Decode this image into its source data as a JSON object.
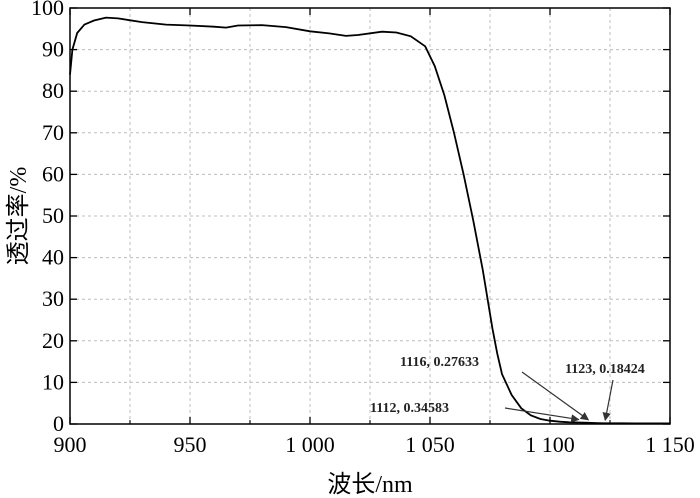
{
  "chart_data": {
    "type": "line",
    "xlabel": "波长/nm",
    "ylabel": "透过率/%",
    "xlim": [
      900,
      1150
    ],
    "ylim": [
      0,
      100
    ],
    "grid": true,
    "x_ticks": [
      900,
      950,
      1000,
      1050,
      1100,
      1150
    ],
    "x_tick_labels": [
      "900",
      "950",
      "1 000",
      "1 050",
      "1 100",
      "1 150"
    ],
    "y_ticks": [
      0,
      10,
      20,
      30,
      40,
      50,
      60,
      70,
      80,
      90,
      100
    ],
    "y_tick_labels": [
      "0",
      "10",
      "20",
      "30",
      "40",
      "50",
      "60",
      "70",
      "80",
      "90",
      "100"
    ],
    "series": [
      {
        "x": [
          900,
          901,
          903,
          906,
          910,
          915,
          920,
          930,
          940,
          950,
          960,
          965,
          970,
          980,
          990,
          1000,
          1008,
          1015,
          1020,
          1030,
          1036,
          1042,
          1048,
          1052,
          1056,
          1060,
          1064,
          1068,
          1072,
          1074,
          1076,
          1078,
          1080,
          1084,
          1088,
          1092,
          1096,
          1100,
          1104,
          1108,
          1112,
          1116,
          1120,
          1123,
          1130,
          1140,
          1150
        ],
        "y": [
          84,
          90,
          94,
          96,
          97,
          97.7,
          97.5,
          96.6,
          96.0,
          95.8,
          95.5,
          95.3,
          95.8,
          95.9,
          95.4,
          94.4,
          93.9,
          93.3,
          93.5,
          94.3,
          94.1,
          93.2,
          90.8,
          86,
          79,
          70,
          60,
          49,
          37,
          30,
          23,
          17,
          12,
          7,
          3.8,
          2.1,
          1.2,
          0.8,
          0.55,
          0.42,
          0.35,
          0.28,
          0.22,
          0.18,
          0.16,
          0.14,
          0.14
        ],
        "color": "#000000"
      }
    ],
    "annotations": [
      {
        "text": "1116, 0.27633",
        "x": 1116,
        "y": 0.27633
      },
      {
        "text": "1112, 0.34583",
        "x": 1112,
        "y": 0.34583
      },
      {
        "text": "1123, 0.18424",
        "x": 1123,
        "y": 0.18424
      }
    ]
  }
}
